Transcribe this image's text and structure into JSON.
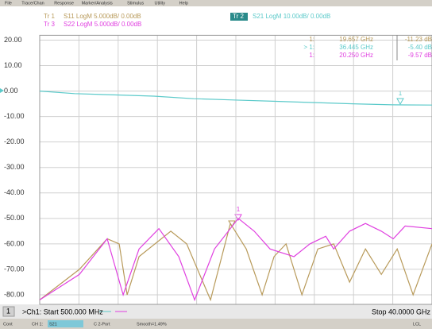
{
  "menu": [
    "File",
    "Trace/Chan",
    "Response",
    "Marker/Analysis",
    "Stimulus",
    "Utility",
    "Help"
  ],
  "marker_table": [
    [
      "1:",
      "19.657 GHz",
      "-11.23 dB"
    ],
    [
      "> 1:",
      "36.445 GHz",
      "-5.40 dB"
    ],
    [
      "1:",
      "20.250 GHz",
      "-9.57 dB"
    ]
  ],
  "footer": {
    "channel": "1",
    "start": ">Ch1: Start 500.000 MHz",
    "stop": "Stop 40.0000 GHz"
  },
  "status": [
    "Cont",
    "CH 1:",
    "S21",
    "C 2-Port",
    "Smooth=1.49%",
    "LCL"
  ],
  "chart_data": {
    "type": "line",
    "xlim": [
      0.5,
      40
    ],
    "ylim": [
      -83.75,
      21.9
    ],
    "yticks": [
      {
        "value": 20,
        "label": "20.00"
      },
      {
        "value": 10,
        "label": "10.00"
      },
      {
        "value": 0,
        "label": "0.00"
      },
      {
        "value": -10,
        "label": "-10.00"
      },
      {
        "value": -20,
        "label": "-20.00"
      },
      {
        "value": -30,
        "label": "-30.00"
      },
      {
        "value": -40,
        "label": "-40.00"
      },
      {
        "value": -50,
        "label": "-50.00"
      },
      {
        "value": -60,
        "label": "-60.00"
      },
      {
        "value": -70,
        "label": "-70.00"
      },
      {
        "value": -80,
        "label": "-80.00"
      }
    ],
    "grid": true,
    "series": [
      {
        "trace": "Tr 1",
        "name": "S11 LogM 5.000dB/  0.00dB",
        "color": "#b89a5a",
        "x": [
          0.5,
          4.5,
          7.3,
          8.5,
          9.3,
          10.5,
          13.7,
          15.3,
          17.7,
          19.7,
          21.3,
          22.9,
          24.1,
          25.3,
          26.9,
          28.5,
          30.1,
          31.7,
          33.3,
          34.9,
          36.5,
          38.1,
          40.0
        ],
        "values": [
          -82,
          -70,
          -58,
          -60,
          -80,
          -65,
          -55,
          -60,
          -82,
          -52,
          -62,
          -80,
          -65,
          -60,
          -80,
          -62,
          -60,
          -75,
          -62,
          -72,
          -62,
          -80,
          -60
        ]
      },
      {
        "trace": "Tr 2",
        "name": "S21 LogM 10.00dB/  0.00dB",
        "color": "#5ccaca",
        "x": [
          0.5,
          4,
          8,
          12,
          16,
          20,
          24,
          28,
          32,
          36,
          40
        ],
        "values": [
          0,
          -1,
          -1.5,
          -2,
          -3,
          -3.5,
          -4,
          -4.5,
          -5,
          -5.4,
          -5.5
        ]
      },
      {
        "trace": "Tr 3",
        "name": "S22 LogM 5.000dB/  0.00dB",
        "color": "#e040e0",
        "x": [
          0.5,
          4.5,
          7.3,
          8.9,
          10.5,
          12.5,
          14.5,
          16.1,
          18.1,
          20.5,
          22.1,
          23.7,
          26.1,
          27.7,
          29.3,
          30.1,
          31.7,
          33.3,
          34.9,
          36.1,
          37.3,
          40.0
        ],
        "values": [
          -82,
          -72,
          -58,
          -80,
          -62,
          -54,
          -65,
          -82,
          -62,
          -50,
          -55,
          -62,
          -65,
          -60,
          -57,
          -62,
          -55,
          -52,
          -55,
          -58,
          -53,
          -54
        ]
      }
    ]
  }
}
